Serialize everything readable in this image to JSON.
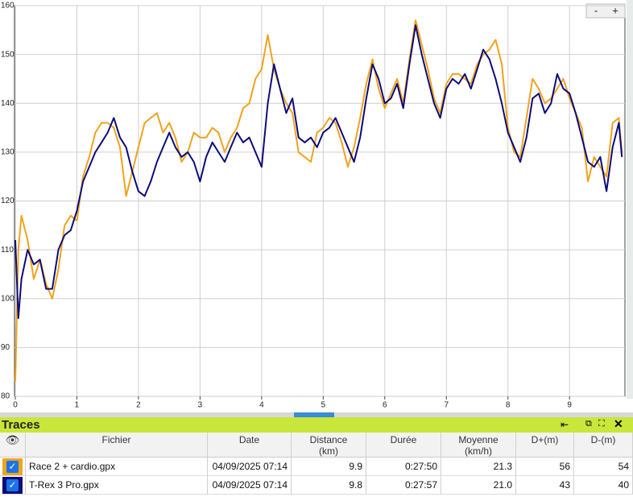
{
  "chart_data": {
    "type": "line",
    "x": [
      0,
      0.05,
      0.1,
      0.2,
      0.3,
      0.4,
      0.5,
      0.6,
      0.7,
      0.8,
      0.9,
      1.0,
      1.1,
      1.2,
      1.3,
      1.4,
      1.5,
      1.6,
      1.7,
      1.8,
      1.9,
      2.0,
      2.1,
      2.2,
      2.3,
      2.4,
      2.5,
      2.6,
      2.7,
      2.8,
      2.9,
      3.0,
      3.1,
      3.2,
      3.3,
      3.4,
      3.5,
      3.6,
      3.7,
      3.8,
      3.9,
      4.0,
      4.1,
      4.2,
      4.3,
      4.4,
      4.5,
      4.6,
      4.7,
      4.8,
      4.9,
      5.0,
      5.1,
      5.2,
      5.3,
      5.4,
      5.5,
      5.6,
      5.7,
      5.8,
      5.9,
      6.0,
      6.1,
      6.2,
      6.3,
      6.4,
      6.5,
      6.6,
      6.7,
      6.8,
      6.9,
      7.0,
      7.1,
      7.2,
      7.3,
      7.4,
      7.5,
      7.6,
      7.7,
      7.8,
      7.9,
      8.0,
      8.1,
      8.2,
      8.3,
      8.4,
      8.5,
      8.6,
      8.7,
      8.8,
      8.9,
      9.0,
      9.1,
      9.2,
      9.3,
      9.4,
      9.5,
      9.6,
      9.7,
      9.8,
      9.85
    ],
    "series": [
      {
        "name": "Race 2 + cardio.gpx",
        "color": "#f0a31c",
        "values": [
          83,
          110,
          117,
          112,
          104,
          108,
          103,
          100,
          106,
          115,
          117,
          116,
          125,
          129,
          134,
          136,
          136,
          135,
          131,
          121,
          126,
          131,
          136,
          137,
          138,
          134,
          136,
          133,
          128,
          130,
          134,
          133,
          133,
          135,
          134,
          130,
          133,
          135,
          139,
          140,
          145,
          147,
          154,
          147,
          143,
          140,
          138,
          130,
          129,
          128,
          134,
          135,
          137,
          136,
          132,
          127,
          131,
          137,
          144,
          149,
          143,
          139,
          142,
          145,
          140,
          149,
          157,
          152,
          147,
          141,
          138,
          144,
          146,
          146,
          145,
          144,
          148,
          150,
          151,
          153,
          148,
          135,
          130,
          129,
          137,
          145,
          143,
          140,
          141,
          143,
          145,
          141,
          138,
          135,
          124,
          129,
          127,
          125,
          136,
          137,
          130
        ]
      },
      {
        "name": "T-Rex 3 Pro.gpx",
        "color": "#0c0c7a",
        "values": [
          112,
          96,
          104,
          110,
          107,
          108,
          102,
          102,
          110,
          113,
          114,
          118,
          124,
          127,
          130,
          132,
          134,
          137,
          133,
          131,
          126,
          122,
          121,
          124,
          128,
          131,
          134,
          131,
          129,
          130,
          128,
          124,
          129,
          132,
          130,
          128,
          131,
          134,
          132,
          133,
          130,
          127,
          140,
          148,
          143,
          138,
          141,
          133,
          132,
          133,
          131,
          134,
          135,
          137,
          134,
          131,
          128,
          133,
          141,
          148,
          145,
          140,
          141,
          144,
          139,
          148,
          156,
          150,
          145,
          140,
          137,
          143,
          145,
          144,
          146,
          143,
          147,
          151,
          149,
          145,
          140,
          134,
          131,
          128,
          133,
          141,
          142,
          138,
          140,
          146,
          143,
          142,
          138,
          133,
          128,
          127,
          129,
          122,
          131,
          136,
          129
        ]
      }
    ],
    "xlim": [
      0,
      9.9
    ],
    "xticks": [
      0,
      1,
      2,
      3,
      4,
      5,
      6,
      7,
      8,
      9
    ],
    "ylim": [
      80,
      160
    ],
    "yticks": [
      80,
      90,
      100,
      110,
      120,
      130,
      140,
      150,
      160
    ],
    "grid": true
  },
  "zoom": [
    "-",
    "+"
  ],
  "table": {
    "title": "Traces",
    "columns": [
      [
        "Fichier"
      ],
      [
        "Date"
      ],
      [
        "Distance",
        "(km)"
      ],
      [
        "Durée"
      ],
      [
        "Moyenne",
        "(km/h)"
      ],
      [
        "D+(m)"
      ],
      [
        "D-(m)"
      ]
    ],
    "rows": [
      [
        "Race 2 + cardio.gpx",
        "04/09/2025 07:14",
        "9.9",
        "0:27:50",
        "21.3",
        "56",
        "54"
      ],
      [
        "T-Rex 3 Pro.gpx",
        "04/09/2025 07:14",
        "9.8",
        "0:27:57",
        "21.0",
        "43",
        "40"
      ]
    ]
  }
}
